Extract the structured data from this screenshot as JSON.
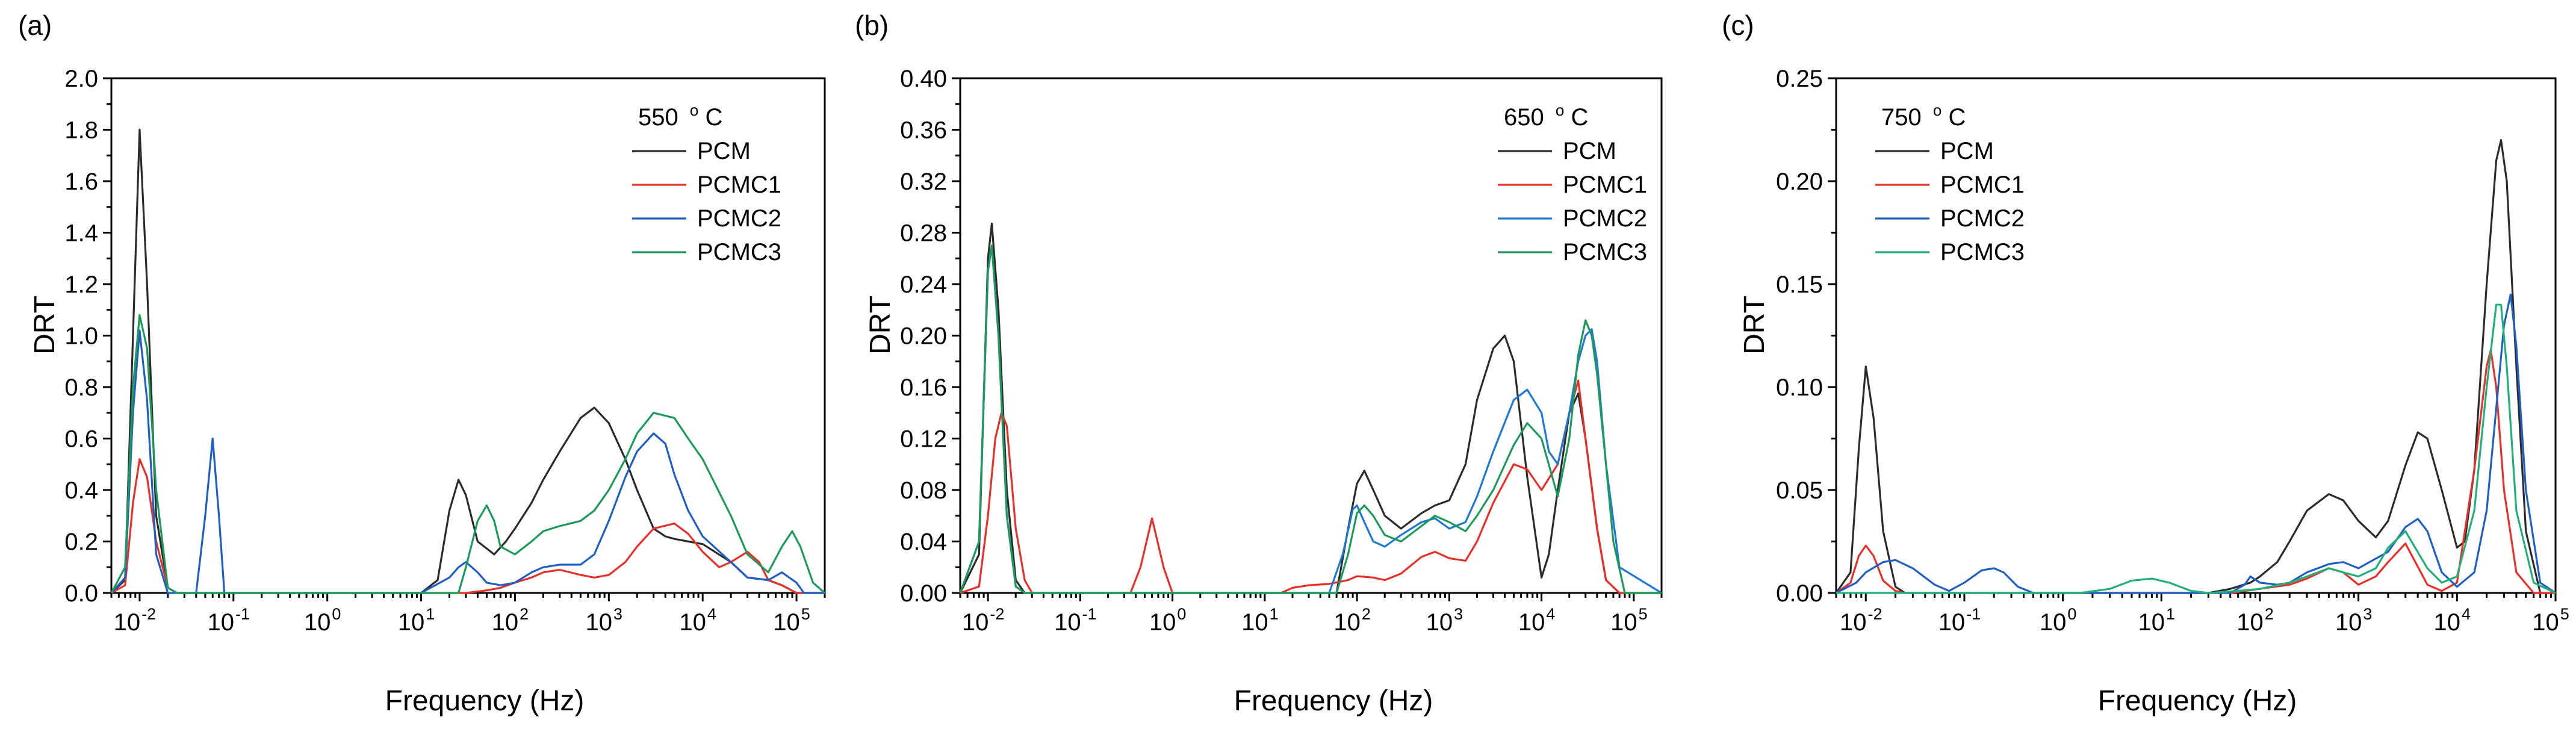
{
  "chart_data": [
    {
      "type": "line",
      "panel_label": "(a)",
      "legend_title": "550 °C",
      "legend_title_parts": {
        "value": "550",
        "deg": "o",
        "unit": "C"
      },
      "legend_placement": "top-right",
      "xlabel": "Frequency (Hz)",
      "ylabel": "DRT",
      "x_scale": "log",
      "xlim": [
        0.005,
        200000
      ],
      "ylim": [
        0,
        2.0
      ],
      "y_ticks": [
        "0.0",
        "0.2",
        "0.4",
        "0.6",
        "0.8",
        "1.0",
        "1.2",
        "1.4",
        "1.6",
        "1.8",
        "2.0"
      ],
      "x_tick_exponents": [
        "-2",
        "-1",
        "0",
        "1",
        "2",
        "3",
        "4",
        "5"
      ],
      "grid": false,
      "series": [
        {
          "name": "PCM",
          "color": "#2b2b2b",
          "x": [
            0.005,
            0.007,
            0.0085,
            0.01,
            0.012,
            0.015,
            0.02,
            0.025,
            10,
            15,
            20,
            25,
            30,
            40,
            60,
            80,
            100,
            150,
            200,
            300,
            500,
            700,
            1000,
            1500,
            2000,
            3000,
            4000,
            5000,
            7000,
            10000,
            20000,
            30000,
            50000,
            70000,
            100000,
            150000,
            200000
          ],
          "y": [
            0,
            0.05,
            1.0,
            1.8,
            1.2,
            0.3,
            0.02,
            0,
            0,
            0.05,
            0.32,
            0.44,
            0.38,
            0.2,
            0.15,
            0.2,
            0.25,
            0.35,
            0.44,
            0.55,
            0.68,
            0.72,
            0.66,
            0.52,
            0.4,
            0.25,
            0.22,
            0.21,
            0.2,
            0.19,
            0.12,
            0.06,
            0.05,
            0.03,
            0.0,
            0.0,
            0
          ]
        },
        {
          "name": "PCMC1",
          "color": "#e8302a",
          "x": [
            0.005,
            0.007,
            0.0085,
            0.01,
            0.012,
            0.015,
            0.02,
            0.025,
            30,
            50,
            70,
            100,
            150,
            200,
            300,
            500,
            700,
            1000,
            1500,
            2000,
            3000,
            5000,
            7000,
            10000,
            15000,
            20000,
            30000,
            40000,
            50000,
            70000,
            100000,
            200000
          ],
          "y": [
            0,
            0.03,
            0.35,
            0.52,
            0.45,
            0.2,
            0.02,
            0,
            0,
            0.01,
            0.02,
            0.04,
            0.06,
            0.08,
            0.09,
            0.07,
            0.06,
            0.07,
            0.12,
            0.18,
            0.25,
            0.27,
            0.23,
            0.16,
            0.1,
            0.12,
            0.16,
            0.12,
            0.05,
            0.03,
            0.0,
            0
          ]
        },
        {
          "name": "PCMC2",
          "color": "#1f5fc4",
          "x": [
            0.005,
            0.007,
            0.0085,
            0.01,
            0.012,
            0.015,
            0.02,
            0.04,
            0.05,
            0.06,
            0.07,
            0.08,
            10,
            20,
            25,
            30,
            40,
            50,
            70,
            100,
            150,
            200,
            300,
            500,
            700,
            1000,
            1500,
            2000,
            3000,
            4000,
            5000,
            7000,
            10000,
            20000,
            30000,
            50000,
            70000,
            100000,
            120000,
            200000
          ],
          "y": [
            0,
            0.06,
            0.7,
            1.02,
            0.75,
            0.15,
            0,
            0,
            0.3,
            0.6,
            0.3,
            0,
            0,
            0.06,
            0.1,
            0.12,
            0.08,
            0.04,
            0.03,
            0.04,
            0.08,
            0.1,
            0.11,
            0.11,
            0.15,
            0.28,
            0.45,
            0.55,
            0.62,
            0.58,
            0.46,
            0.32,
            0.22,
            0.12,
            0.06,
            0.05,
            0.08,
            0.04,
            0.0,
            0
          ]
        },
        {
          "name": "PCMC3",
          "color": "#1c9a5c",
          "x": [
            0.005,
            0.007,
            0.0085,
            0.01,
            0.012,
            0.015,
            0.02,
            0.025,
            25,
            30,
            40,
            50,
            60,
            70,
            100,
            150,
            200,
            300,
            500,
            700,
            1000,
            1500,
            2000,
            3000,
            5000,
            7000,
            10000,
            20000,
            30000,
            50000,
            70000,
            90000,
            110000,
            150000,
            200000
          ],
          "y": [
            0,
            0.1,
            0.8,
            1.08,
            0.95,
            0.4,
            0.02,
            0,
            0,
            0.1,
            0.28,
            0.34,
            0.28,
            0.18,
            0.15,
            0.2,
            0.24,
            0.26,
            0.28,
            0.32,
            0.4,
            0.52,
            0.62,
            0.7,
            0.68,
            0.6,
            0.52,
            0.3,
            0.15,
            0.08,
            0.18,
            0.24,
            0.18,
            0.04,
            0
          ]
        }
      ]
    },
    {
      "type": "line",
      "panel_label": "(b)",
      "legend_title": "650 °C",
      "legend_title_parts": {
        "value": "650",
        "deg": "o",
        "unit": "C"
      },
      "legend_placement": "top-right",
      "xlabel": "Frequency (Hz)",
      "ylabel": "DRT",
      "x_scale": "log",
      "xlim": [
        0.005,
        200000
      ],
      "ylim": [
        0,
        0.4
      ],
      "y_ticks": [
        "0.00",
        "0.04",
        "0.08",
        "0.12",
        "0.16",
        "0.20",
        "0.24",
        "0.28",
        "0.32",
        "0.36",
        "0.40"
      ],
      "x_tick_exponents": [
        "-2",
        "-1",
        "0",
        "1",
        "2",
        "3",
        "4",
        "5"
      ],
      "grid": false,
      "series": [
        {
          "name": "PCM",
          "color": "#2b2b2b",
          "x": [
            0.005,
            0.008,
            0.01,
            0.011,
            0.013,
            0.016,
            0.02,
            0.025,
            60,
            80,
            100,
            120,
            150,
            200,
            300,
            500,
            700,
            1000,
            1500,
            2000,
            3000,
            4000,
            5000,
            7000,
            10000,
            12000,
            15000,
            20000,
            25000,
            30000,
            40000,
            50000,
            70000,
            100000,
            200000
          ],
          "y": [
            0,
            0.03,
            0.26,
            0.287,
            0.22,
            0.08,
            0.01,
            0,
            0,
            0.05,
            0.085,
            0.095,
            0.08,
            0.06,
            0.05,
            0.062,
            0.068,
            0.072,
            0.1,
            0.15,
            0.19,
            0.2,
            0.18,
            0.09,
            0.012,
            0.03,
            0.08,
            0.14,
            0.155,
            0.12,
            0.05,
            0.01,
            0.0,
            0.0,
            0
          ]
        },
        {
          "name": "PCMC1",
          "color": "#e8302a",
          "x": [
            0.005,
            0.008,
            0.01,
            0.012,
            0.014,
            0.016,
            0.02,
            0.025,
            0.03,
            0.35,
            0.45,
            0.6,
            0.8,
            1.0,
            15,
            20,
            30,
            50,
            80,
            100,
            150,
            200,
            300,
            500,
            700,
            1000,
            1500,
            2000,
            3000,
            5000,
            7000,
            10000,
            15000,
            20000,
            25000,
            30000,
            40000,
            50000,
            70000,
            200000
          ],
          "y": [
            0,
            0.005,
            0.06,
            0.12,
            0.14,
            0.13,
            0.05,
            0.01,
            0,
            0,
            0.02,
            0.058,
            0.02,
            0,
            0,
            0.004,
            0.006,
            0.007,
            0.01,
            0.013,
            0.012,
            0.01,
            0.015,
            0.028,
            0.032,
            0.027,
            0.025,
            0.04,
            0.07,
            0.1,
            0.096,
            0.08,
            0.1,
            0.14,
            0.165,
            0.12,
            0.05,
            0.01,
            0.0,
            0
          ]
        },
        {
          "name": "PCMC2",
          "color": "#1f78d4",
          "x": [
            0.005,
            0.008,
            0.01,
            0.011,
            0.013,
            0.016,
            0.02,
            0.025,
            50,
            70,
            90,
            100,
            120,
            150,
            200,
            300,
            500,
            700,
            1000,
            1500,
            2000,
            3000,
            5000,
            7000,
            10000,
            12000,
            15000,
            20000,
            25000,
            30000,
            35000,
            40000,
            50000,
            70000,
            200000
          ],
          "y": [
            0,
            0.04,
            0.25,
            0.27,
            0.2,
            0.06,
            0.005,
            0,
            0,
            0.03,
            0.065,
            0.068,
            0.055,
            0.04,
            0.036,
            0.045,
            0.055,
            0.058,
            0.05,
            0.055,
            0.075,
            0.11,
            0.15,
            0.158,
            0.14,
            0.11,
            0.1,
            0.14,
            0.18,
            0.2,
            0.205,
            0.18,
            0.1,
            0.02,
            0
          ]
        },
        {
          "name": "PCMC3",
          "color": "#1c9a5c",
          "x": [
            0.005,
            0.008,
            0.01,
            0.011,
            0.013,
            0.016,
            0.02,
            0.025,
            60,
            80,
            100,
            120,
            150,
            200,
            300,
            500,
            700,
            1000,
            1500,
            2000,
            3000,
            5000,
            7000,
            10000,
            15000,
            20000,
            25000,
            30000,
            35000,
            40000,
            50000,
            60000,
            80000,
            200000
          ],
          "y": [
            0,
            0.04,
            0.25,
            0.27,
            0.2,
            0.06,
            0.005,
            0,
            0,
            0.03,
            0.062,
            0.068,
            0.06,
            0.045,
            0.04,
            0.052,
            0.06,
            0.055,
            0.048,
            0.06,
            0.08,
            0.115,
            0.132,
            0.12,
            0.075,
            0.12,
            0.185,
            0.212,
            0.2,
            0.17,
            0.1,
            0.04,
            0.0,
            0
          ]
        }
      ]
    },
    {
      "type": "line",
      "panel_label": "(c)",
      "legend_title": "750 °C",
      "legend_title_parts": {
        "value": "750",
        "deg": "o",
        "unit": "C"
      },
      "legend_placement": "top-left",
      "xlabel": "Frequency (Hz)",
      "ylabel": "DRT",
      "x_scale": "log",
      "xlim": [
        0.005,
        100000
      ],
      "ylim": [
        0,
        0.25
      ],
      "y_ticks": [
        "0.00",
        "0.05",
        "0.10",
        "0.15",
        "0.20",
        "0.25"
      ],
      "x_tick_exponents": [
        "-2",
        "-1",
        "0",
        "1",
        "2",
        "3",
        "4",
        "5"
      ],
      "grid": false,
      "series": [
        {
          "name": "PCM",
          "color": "#2b2b2b",
          "x": [
            0.005,
            0.007,
            0.0085,
            0.01,
            0.012,
            0.015,
            0.02,
            0.025,
            30,
            50,
            80,
            100,
            150,
            200,
            300,
            500,
            700,
            1000,
            1500,
            2000,
            3000,
            4000,
            5000,
            7000,
            10000,
            12000,
            15000,
            20000,
            25000,
            28000,
            32000,
            40000,
            50000,
            70000,
            100000
          ],
          "y": [
            0,
            0.01,
            0.07,
            0.11,
            0.085,
            0.03,
            0.003,
            0,
            0,
            0.002,
            0.005,
            0.008,
            0.015,
            0.025,
            0.04,
            0.048,
            0.045,
            0.035,
            0.027,
            0.035,
            0.062,
            0.078,
            0.075,
            0.05,
            0.022,
            0.025,
            0.06,
            0.15,
            0.21,
            0.22,
            0.2,
            0.11,
            0.03,
            0.0,
            0
          ]
        },
        {
          "name": "PCMC1",
          "color": "#e8302a",
          "x": [
            0.005,
            0.007,
            0.0085,
            0.01,
            0.012,
            0.015,
            0.02,
            0.025,
            50,
            100,
            200,
            300,
            500,
            700,
            1000,
            1500,
            2000,
            3000,
            5000,
            7000,
            10000,
            15000,
            20000,
            22000,
            25000,
            30000,
            40000,
            60000,
            100000
          ],
          "y": [
            0,
            0.005,
            0.018,
            0.023,
            0.018,
            0.006,
            0.001,
            0,
            0,
            0.002,
            0.004,
            0.007,
            0.012,
            0.01,
            0.004,
            0.008,
            0.015,
            0.024,
            0.004,
            0.001,
            0.005,
            0.06,
            0.11,
            0.118,
            0.1,
            0.05,
            0.01,
            0.0,
            0
          ]
        },
        {
          "name": "PCMC2",
          "color": "#1f5fc4",
          "x": [
            0.005,
            0.008,
            0.01,
            0.015,
            0.02,
            0.03,
            0.05,
            0.07,
            0.1,
            0.15,
            0.2,
            0.25,
            0.35,
            0.5,
            50,
            70,
            80,
            100,
            150,
            200,
            300,
            500,
            700,
            1000,
            2000,
            3000,
            4000,
            5000,
            7000,
            10000,
            15000,
            20000,
            30000,
            35000,
            40000,
            50000,
            70000,
            100000
          ],
          "y": [
            0,
            0.005,
            0.01,
            0.015,
            0.016,
            0.012,
            0.004,
            0.001,
            0.005,
            0.011,
            0.012,
            0.01,
            0.003,
            0,
            0,
            0.004,
            0.008,
            0.005,
            0.004,
            0.005,
            0.01,
            0.014,
            0.015,
            0.012,
            0.02,
            0.032,
            0.036,
            0.03,
            0.01,
            0.003,
            0.01,
            0.04,
            0.13,
            0.145,
            0.12,
            0.05,
            0.005,
            0
          ]
        },
        {
          "name": "PCMC3",
          "color": "#22b07a",
          "x": [
            0.005,
            1.5,
            3,
            5,
            8,
            12,
            20,
            30,
            60,
            100,
            200,
            300,
            500,
            700,
            1000,
            1500,
            2000,
            3000,
            5000,
            7000,
            10000,
            15000,
            20000,
            25000,
            28000,
            32000,
            40000,
            60000,
            100000
          ],
          "y": [
            0,
            0,
            0.002,
            0.006,
            0.007,
            0.005,
            0.001,
            0,
            0.001,
            0.002,
            0.005,
            0.008,
            0.012,
            0.01,
            0.008,
            0.012,
            0.022,
            0.03,
            0.012,
            0.005,
            0.008,
            0.04,
            0.1,
            0.14,
            0.14,
            0.11,
            0.04,
            0.005,
            0
          ]
        }
      ]
    }
  ]
}
